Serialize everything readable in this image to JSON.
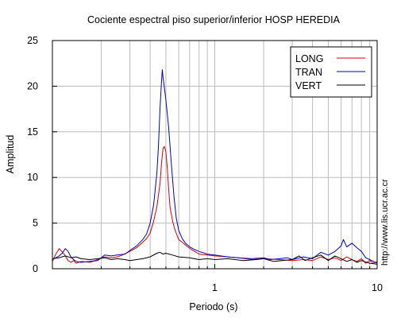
{
  "chart_data": {
    "type": "line",
    "title": "Cociente espectral piso superior/inferior  HOSP HEREDIA",
    "xlabel": "Periodo (s)",
    "ylabel": "Amplitud",
    "xscale": "log",
    "xlim": [
      0.1,
      10
    ],
    "ylim": [
      0,
      25
    ],
    "yticks": [
      0,
      5,
      10,
      15,
      20,
      25
    ],
    "xticks": [
      1,
      10
    ],
    "grid": true,
    "legend_position": "top-right",
    "watermark": "http://www.lis.ucr.ac.cr",
    "series": [
      {
        "name": "LONG",
        "color": "#e00000",
        "points": [
          [
            0.1,
            0.8
          ],
          [
            0.105,
            1.6
          ],
          [
            0.11,
            2.2
          ],
          [
            0.118,
            1.6
          ],
          [
            0.125,
            0.9
          ],
          [
            0.13,
            0.7
          ],
          [
            0.135,
            0.9
          ],
          [
            0.14,
            0.6
          ],
          [
            0.15,
            0.8
          ],
          [
            0.17,
            0.7
          ],
          [
            0.19,
            1.0
          ],
          [
            0.21,
            1.3
          ],
          [
            0.23,
            1.2
          ],
          [
            0.25,
            1.3
          ],
          [
            0.27,
            1.5
          ],
          [
            0.3,
            1.9
          ],
          [
            0.33,
            2.3
          ],
          [
            0.36,
            2.9
          ],
          [
            0.38,
            3.3
          ],
          [
            0.4,
            3.9
          ],
          [
            0.42,
            5.2
          ],
          [
            0.44,
            6.8
          ],
          [
            0.46,
            9.3
          ],
          [
            0.47,
            11.5
          ],
          [
            0.48,
            13.2
          ],
          [
            0.49,
            13.4
          ],
          [
            0.5,
            12.8
          ],
          [
            0.51,
            11.0
          ],
          [
            0.52,
            8.8
          ],
          [
            0.53,
            6.8
          ],
          [
            0.55,
            5.2
          ],
          [
            0.57,
            4.2
          ],
          [
            0.6,
            3.2
          ],
          [
            0.64,
            2.8
          ],
          [
            0.68,
            2.4
          ],
          [
            0.72,
            2.1
          ],
          [
            0.8,
            1.6
          ],
          [
            0.9,
            1.5
          ],
          [
            1.0,
            1.4
          ],
          [
            1.2,
            1.3
          ],
          [
            1.4,
            1.2
          ],
          [
            1.7,
            1.0
          ],
          [
            2.0,
            1.1
          ],
          [
            2.5,
            1.0
          ],
          [
            3.0,
            0.9
          ],
          [
            3.5,
            1.0
          ],
          [
            4.0,
            0.9
          ],
          [
            4.5,
            1.3
          ],
          [
            5.0,
            1.0
          ],
          [
            5.5,
            1.2
          ],
          [
            6.0,
            0.9
          ],
          [
            6.5,
            1.3
          ],
          [
            7.0,
            1.0
          ],
          [
            7.5,
            0.8
          ],
          [
            8.0,
            1.1
          ],
          [
            8.5,
            0.6
          ],
          [
            9.0,
            0.9
          ],
          [
            9.5,
            0.6
          ],
          [
            10.0,
            0.8
          ]
        ]
      },
      {
        "name": "TRAN",
        "color": "#0000cc",
        "points": [
          [
            0.1,
            1.0
          ],
          [
            0.105,
            1.2
          ],
          [
            0.11,
            1.4
          ],
          [
            0.115,
            1.7
          ],
          [
            0.12,
            2.2
          ],
          [
            0.125,
            1.9
          ],
          [
            0.13,
            1.3
          ],
          [
            0.135,
            1.0
          ],
          [
            0.14,
            0.8
          ],
          [
            0.15,
            0.7
          ],
          [
            0.17,
            0.8
          ],
          [
            0.19,
            0.9
          ],
          [
            0.21,
            1.5
          ],
          [
            0.23,
            1.4
          ],
          [
            0.25,
            1.5
          ],
          [
            0.28,
            1.6
          ],
          [
            0.3,
            2.0
          ],
          [
            0.33,
            2.5
          ],
          [
            0.36,
            3.2
          ],
          [
            0.38,
            3.8
          ],
          [
            0.4,
            5.0
          ],
          [
            0.42,
            7.0
          ],
          [
            0.44,
            10.5
          ],
          [
            0.45,
            13.5
          ],
          [
            0.46,
            17.5
          ],
          [
            0.47,
            20.5
          ],
          [
            0.475,
            21.8
          ],
          [
            0.48,
            21.0
          ],
          [
            0.49,
            19.8
          ],
          [
            0.5,
            18.5
          ],
          [
            0.52,
            15.5
          ],
          [
            0.54,
            11.5
          ],
          [
            0.56,
            8.0
          ],
          [
            0.58,
            5.5
          ],
          [
            0.6,
            4.2
          ],
          [
            0.63,
            3.3
          ],
          [
            0.66,
            2.8
          ],
          [
            0.7,
            2.4
          ],
          [
            0.75,
            2.1
          ],
          [
            0.8,
            1.9
          ],
          [
            0.9,
            1.6
          ],
          [
            1.0,
            1.5
          ],
          [
            1.2,
            1.3
          ],
          [
            1.4,
            1.2
          ],
          [
            1.7,
            1.1
          ],
          [
            2.0,
            1.2
          ],
          [
            2.2,
            1.0
          ],
          [
            2.5,
            1.1
          ],
          [
            2.8,
            1.2
          ],
          [
            3.0,
            1.0
          ],
          [
            3.5,
            1.3
          ],
          [
            4.0,
            1.1
          ],
          [
            4.5,
            1.8
          ],
          [
            5.0,
            1.5
          ],
          [
            5.5,
            1.9
          ],
          [
            6.0,
            2.5
          ],
          [
            6.2,
            3.2
          ],
          [
            6.5,
            2.4
          ],
          [
            7.0,
            2.8
          ],
          [
            7.5,
            2.3
          ],
          [
            8.0,
            1.9
          ],
          [
            8.5,
            1.2
          ],
          [
            9.0,
            1.0
          ],
          [
            9.5,
            0.8
          ],
          [
            10.0,
            0.6
          ]
        ]
      },
      {
        "name": "VERT",
        "color": "#000000",
        "points": [
          [
            0.1,
            1.1
          ],
          [
            0.11,
            1.2
          ],
          [
            0.12,
            1.4
          ],
          [
            0.13,
            1.2
          ],
          [
            0.14,
            1.3
          ],
          [
            0.15,
            1.1
          ],
          [
            0.17,
            1.0
          ],
          [
            0.19,
            1.1
          ],
          [
            0.21,
            1.2
          ],
          [
            0.23,
            1.0
          ],
          [
            0.25,
            1.1
          ],
          [
            0.28,
            1.0
          ],
          [
            0.3,
            0.9
          ],
          [
            0.33,
            1.0
          ],
          [
            0.36,
            1.1
          ],
          [
            0.4,
            1.3
          ],
          [
            0.44,
            1.7
          ],
          [
            0.46,
            1.8
          ],
          [
            0.48,
            1.6
          ],
          [
            0.5,
            1.7
          ],
          [
            0.55,
            1.5
          ],
          [
            0.6,
            1.3
          ],
          [
            0.7,
            1.2
          ],
          [
            0.8,
            1.0
          ],
          [
            0.9,
            1.1
          ],
          [
            1.0,
            1.0
          ],
          [
            1.2,
            1.1
          ],
          [
            1.5,
            0.9
          ],
          [
            1.8,
            1.0
          ],
          [
            2.0,
            1.1
          ],
          [
            2.3,
            0.8
          ],
          [
            2.6,
            0.9
          ],
          [
            3.0,
            1.0
          ],
          [
            3.3,
            1.4
          ],
          [
            3.6,
            0.9
          ],
          [
            4.0,
            1.2
          ],
          [
            4.5,
            1.5
          ],
          [
            5.0,
            0.9
          ],
          [
            5.5,
            1.4
          ],
          [
            6.0,
            1.1
          ],
          [
            6.5,
            0.8
          ],
          [
            7.0,
            1.0
          ],
          [
            7.5,
            0.7
          ],
          [
            8.0,
            0.9
          ],
          [
            9.0,
            0.6
          ],
          [
            10.0,
            0.5
          ]
        ]
      }
    ]
  }
}
